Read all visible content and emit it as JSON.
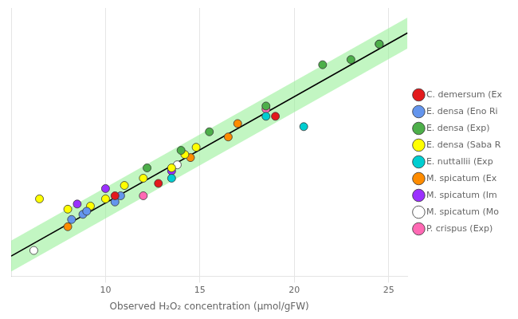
{
  "chart_data": {
    "type": "scatter",
    "xlabel": "Observed H₂O₂ concentration (μmol/gFW)",
    "xlim": [
      5,
      26
    ],
    "ylim": [
      2,
      28
    ],
    "xticks": [
      10,
      15,
      20,
      25
    ],
    "grid": true,
    "tick_labels": "x",
    "legend": "right",
    "series": [
      {
        "type": "band",
        "color": "#90ee90",
        "x": [
          5,
          26
        ],
        "lower": [
          2.45,
          24.08
        ],
        "upper": [
          5.45,
          27.08
        ]
      },
      {
        "type": "line",
        "color": "#000000",
        "x": [
          5,
          26
        ],
        "values": [
          3.95,
          25.58
        ]
      },
      {
        "name": "C. demersum (Ex",
        "color": "#e31a1c",
        "x": [
          19.0,
          10.5,
          12.8
        ],
        "values": [
          17.5,
          9.8,
          11.0
        ]
      },
      {
        "name": "E. densa (Eno Ri",
        "color": "#6495ED",
        "x": [
          8.2,
          8.8,
          9.0,
          10.5,
          10.8
        ],
        "values": [
          7.5,
          8.0,
          8.3,
          9.2,
          9.8
        ]
      },
      {
        "name": "E. densa (Exp)",
        "color": "#4daf4a",
        "x": [
          21.5,
          24.5,
          23.0,
          18.5,
          15.5,
          14.0,
          12.2
        ],
        "values": [
          22.5,
          24.5,
          23.0,
          18.5,
          16.0,
          14.2,
          12.5
        ]
      },
      {
        "name": "E. densa (Saba R",
        "color": "#ffff00",
        "x": [
          6.5,
          8.0,
          9.2,
          10.0,
          11.0,
          12.0,
          13.5,
          14.2,
          14.8
        ],
        "values": [
          9.5,
          8.5,
          8.8,
          9.5,
          10.8,
          11.5,
          12.5,
          13.8,
          14.5
        ]
      },
      {
        "name": "E. nuttallii (Exp",
        "color": "#00ced1",
        "x": [
          13.5,
          18.5,
          24.5,
          20.5
        ],
        "values": [
          11.5,
          17.5,
          24.5,
          16.5
        ]
      },
      {
        "name": "M. spicatum (Ex",
        "color": "#ff8c00",
        "x": [
          8.0,
          16.5,
          17.0,
          14.5
        ],
        "values": [
          6.8,
          15.5,
          16.8,
          13.5
        ]
      },
      {
        "name": "M. spicatum (Im",
        "color": "#9b30ff",
        "x": [
          8.5,
          10.0,
          13.5
        ],
        "values": [
          9.0,
          10.5,
          12.2
        ]
      },
      {
        "name": "M. spicatum (Mo",
        "color": "#ffffff",
        "x": [
          6.2,
          13.8
        ],
        "values": [
          4.5,
          12.8
        ]
      },
      {
        "name": "P. crispus (Exp)",
        "color": "#ff69b4",
        "x": [
          12.0,
          18.5
        ],
        "values": [
          9.8,
          18.2
        ]
      }
    ]
  }
}
